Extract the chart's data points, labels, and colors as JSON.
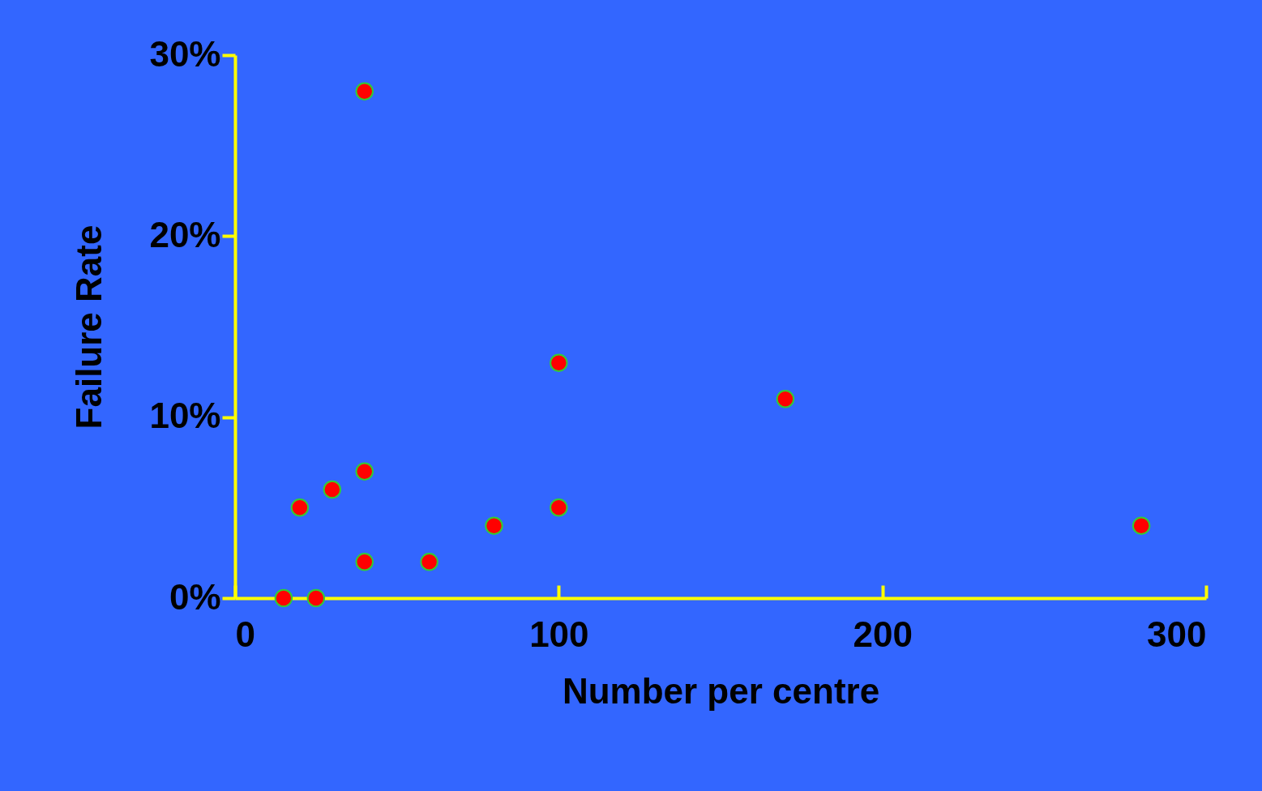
{
  "chart_data": {
    "type": "scatter",
    "xlabel": "Number per centre",
    "ylabel": "Failure Rate",
    "x": [
      15,
      25,
      20,
      30,
      40,
      40,
      40,
      60,
      80,
      100,
      100,
      170,
      280
    ],
    "values": [
      0,
      0,
      5,
      6,
      7,
      28,
      2,
      2,
      4,
      5,
      13,
      11,
      4
    ],
    "color": "#ff0000",
    "marker": "circle",
    "grid": false,
    "xlim": [
      0,
      300
    ],
    "xticks": [
      0,
      100,
      200,
      300
    ],
    "ylim": [
      0,
      30
    ],
    "yticks": [
      {
        "value": 0,
        "label": "0%"
      },
      {
        "value": 10,
        "label": "10%"
      },
      {
        "value": 20,
        "label": "20%"
      },
      {
        "value": 30,
        "label": "30%"
      }
    ]
  }
}
